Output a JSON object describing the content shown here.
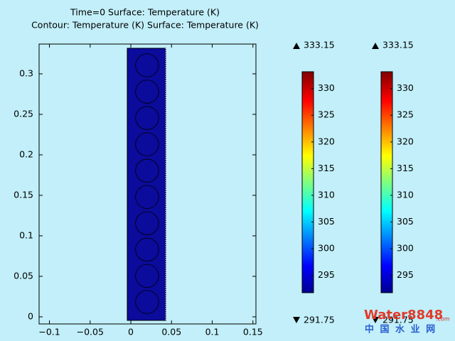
{
  "chart_data": {
    "type": "surface",
    "title": "Time=0  Surface: Temperature (K)",
    "subtitle": "Contour: Temperature (K) Surface: Temperature (K)",
    "xlim": [
      -0.1127,
      0.1537
    ],
    "ylim": [
      -0.0088,
      0.3368
    ],
    "xticks": [
      {
        "value": -0.1,
        "label": "−0.1"
      },
      {
        "value": -0.05,
        "label": "−0.05"
      },
      0,
      0.05,
      0.1,
      0.15
    ],
    "yticks": [
      0,
      0.05,
      0.1,
      0.15,
      0.2,
      0.25,
      0.3
    ],
    "domain": {
      "x": [
        -0.0044,
        0.0428
      ],
      "y": [
        -0.0044,
        0.3316
      ],
      "color": "#0b0b9c"
    },
    "circles": {
      "cx": 0.02,
      "r": 0.0142,
      "cy": [
        0.3105,
        0.278,
        0.2455,
        0.213,
        0.1805,
        0.148,
        0.1155,
        0.083,
        0.0505,
        0.0184
      ]
    },
    "colorbars": [
      {
        "max": 333.15,
        "min": 291.75,
        "ticks": [
          295,
          300,
          305,
          310,
          315,
          320,
          325,
          330
        ]
      },
      {
        "max": 333.15,
        "min": 291.75,
        "ticks": [
          295,
          300,
          305,
          310,
          315,
          320,
          325,
          330
        ]
      }
    ]
  },
  "watermark": {
    "brand": "Water8848",
    "domain": ".com",
    "cn": "中 国 水 业 网"
  }
}
